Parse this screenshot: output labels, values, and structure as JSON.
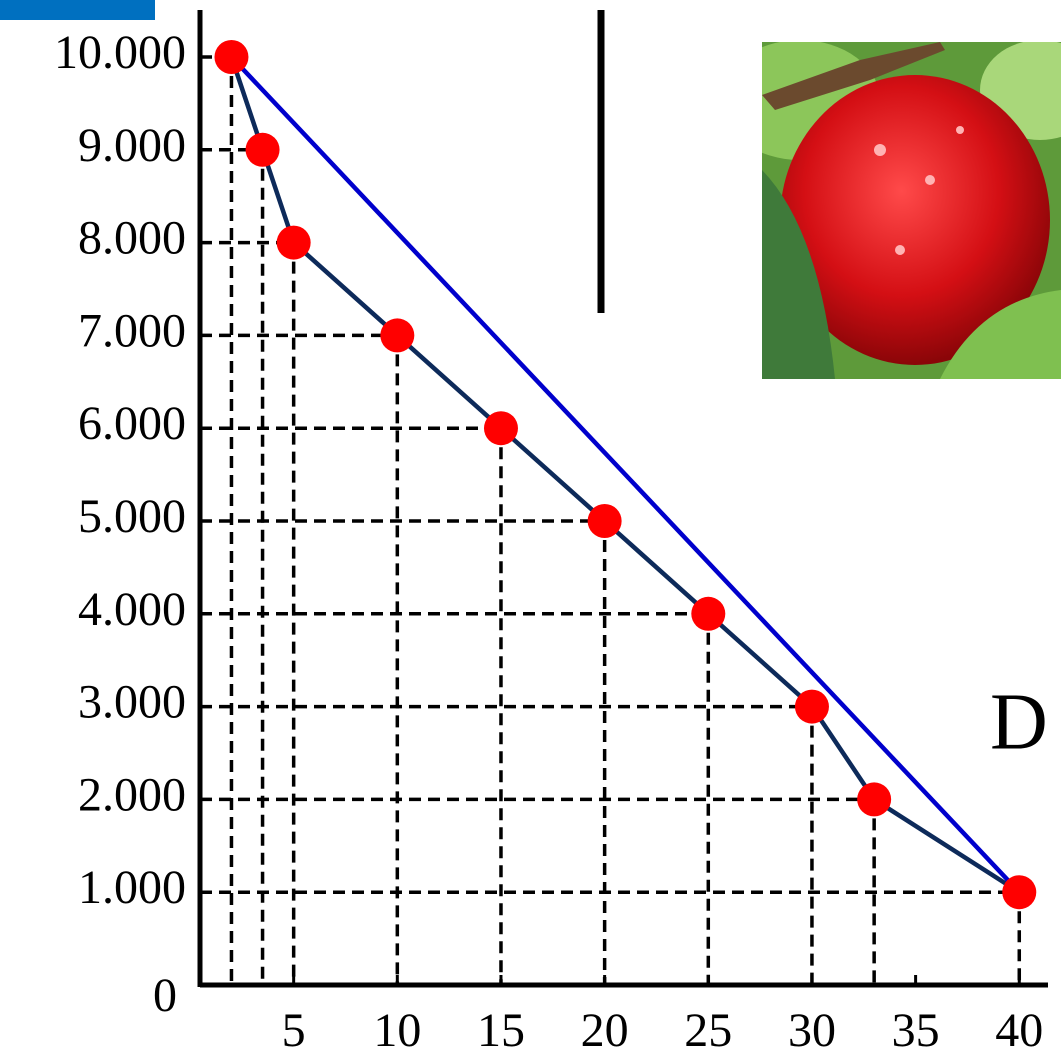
{
  "chart_data": {
    "type": "line",
    "series": [
      {
        "color": "#0d2a5a",
        "marker_color": "#ff0000",
        "x": [
          2,
          3.5,
          5,
          10,
          15,
          20,
          25,
          30,
          33,
          40
        ],
        "values": [
          10000,
          9000,
          8000,
          7000,
          6000,
          5000,
          4000,
          3000,
          2000,
          1000
        ]
      },
      {
        "color": "#0000cc",
        "x": [
          2,
          40
        ],
        "values": [
          10000,
          1000
        ]
      }
    ],
    "xlim": [
      0,
      41
    ],
    "ylim": [
      0,
      10000
    ],
    "xticks": [
      5,
      10,
      15,
      20,
      25,
      30,
      35,
      40
    ],
    "yticks": [
      0,
      {
        "value": 1000,
        "label": "1.000"
      },
      {
        "value": 2000,
        "label": "2.000"
      },
      {
        "value": 3000,
        "label": "3.000"
      },
      {
        "value": 4000,
        "label": "4.000"
      },
      {
        "value": 5000,
        "label": "5.000"
      },
      {
        "value": 6000,
        "label": "6.000"
      },
      {
        "value": 7000,
        "label": "7.000"
      },
      {
        "value": 8000,
        "label": "8.000"
      },
      {
        "value": 9000,
        "label": "9.000"
      },
      {
        "value": 10000,
        "label": "10.000"
      }
    ],
    "drop_lines": true,
    "annotation": "D"
  }
}
